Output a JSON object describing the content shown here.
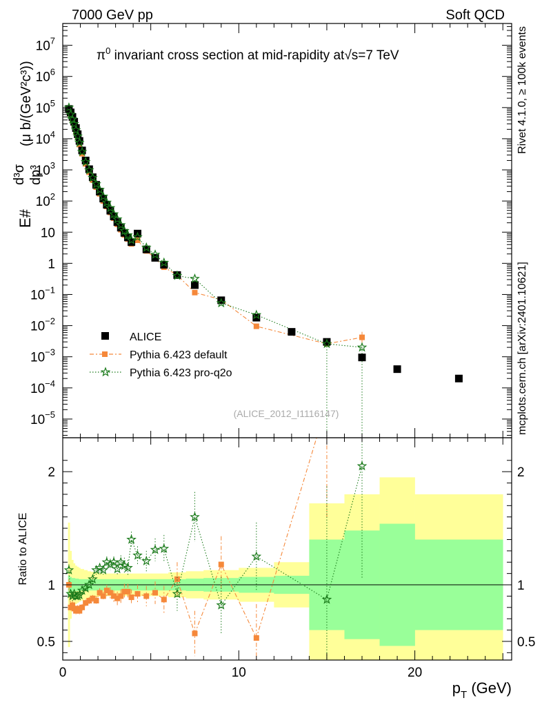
{
  "header": {
    "energy_label": "7000 GeV pp",
    "process_label": "Soft QCD"
  },
  "side": {
    "rivet_label": "Rivet 4.1.0, ≥ 100k events",
    "mcplots_label": "mcplots.cern.ch [arXiv:2401.10621]"
  },
  "chart_data": {
    "type": "scatter",
    "title": "π⁰ invariant cross section at mid-rapidity at √s=7 TeV",
    "title_parts": {
      "prefix": "π",
      "sup": "0",
      "middle": " invariant cross section at mid-rapidity at",
      "root": "√",
      "suffix": "s=7 TeV"
    },
    "ylabel": "E d³σ/dp³ (μ b/(GeV² c³))",
    "ylabel_parts": {
      "a": "E#",
      "num": "d³σ",
      "den": "dp³",
      "unit": "(μ b/(GeV²c³))"
    },
    "xlabel": "p_T (GeV)",
    "xlabel_parts": {
      "main": "p",
      "sub": "T",
      "unit": " (GeV)"
    },
    "ratio_ylabel": "Ratio to ALICE",
    "watermark": "(ALICE_2012_I1116147)",
    "xlim": [
      0,
      25.5
    ],
    "ylim_log_exp": [
      -5.6,
      7.7
    ],
    "ratio_ylim": [
      0.335,
      2.3
    ],
    "x_ticks": [
      0,
      10,
      20
    ],
    "x_tick_labels": [
      "0",
      "10",
      "20"
    ],
    "y_ticks": [
      {
        "exp": 7,
        "label": "10",
        "sup": "7"
      },
      {
        "exp": 6,
        "label": "10",
        "sup": "6"
      },
      {
        "exp": 5,
        "label": "10",
        "sup": "5"
      },
      {
        "exp": 4,
        "label": "10",
        "sup": "4"
      },
      {
        "exp": 3,
        "label": "10",
        "sup": "3"
      },
      {
        "exp": 2,
        "label": "10",
        "sup": "2"
      },
      {
        "exp": 1,
        "label": "10",
        "sup": ""
      },
      {
        "exp": 0,
        "label": "1",
        "sup": ""
      },
      {
        "exp": -1,
        "label": "10",
        "sup": "−1"
      },
      {
        "exp": -2,
        "label": "10",
        "sup": "−2"
      },
      {
        "exp": -3,
        "label": "10",
        "sup": "−3"
      },
      {
        "exp": -4,
        "label": "10",
        "sup": "−4"
      },
      {
        "exp": -5,
        "label": "10",
        "sup": "−5"
      }
    ],
    "ratio_ticks": [
      0.5,
      1,
      2
    ],
    "ratio_tick_labels": [
      "0.5",
      "1",
      "2"
    ],
    "legend": [
      {
        "name": "ALICE"
      },
      {
        "name": "Pythia 6.423 default"
      },
      {
        "name": "Pythia 6.423 pro-q2o"
      }
    ],
    "colors": {
      "data": "#000000",
      "default": "#f5883a",
      "proq2o": "#1a7a1a",
      "band_outer": "#ffff99",
      "band_inner": "#99ff99",
      "watermark": "#aaaaaa",
      "side_text": "#999999"
    },
    "series": [
      {
        "name": "ALICE",
        "x": [
          0.35,
          0.45,
          0.55,
          0.65,
          0.75,
          0.85,
          0.95,
          1.1,
          1.3,
          1.5,
          1.7,
          1.9,
          2.1,
          2.3,
          2.5,
          2.7,
          2.9,
          3.1,
          3.3,
          3.5,
          3.7,
          3.9,
          4.25,
          4.75,
          5.25,
          5.75,
          6.5,
          7.5,
          9.0,
          11.0,
          13.0,
          15.0,
          17.0,
          19.0,
          22.5
        ],
        "y": [
          90000,
          70000,
          50000,
          35000,
          22000,
          14000,
          8500,
          4200,
          2000,
          1050,
          580,
          330,
          200,
          120,
          76,
          49,
          32,
          21,
          14,
          9.5,
          6.8,
          4.8,
          9.0,
          2.8,
          1.5,
          0.9,
          0.42,
          0.2,
          0.065,
          0.018,
          0.0063,
          0.003,
          0.00095,
          0.0004,
          0.0002
        ]
      },
      {
        "name": "Pythia 6.423 default",
        "x": [
          0.35,
          0.45,
          0.55,
          0.65,
          0.75,
          0.85,
          0.95,
          1.1,
          1.3,
          1.5,
          1.7,
          1.9,
          2.1,
          2.3,
          2.5,
          2.7,
          2.9,
          3.1,
          3.3,
          3.5,
          3.7,
          3.9,
          4.25,
          4.75,
          5.25,
          5.75,
          6.5,
          7.5,
          9.0,
          11.0,
          15.0,
          17.0
        ],
        "y": [
          90000,
          55000,
          40000,
          28000,
          17000,
          11000,
          6500,
          3300,
          1560,
          840,
          470,
          280,
          170,
          100,
          67,
          43,
          28,
          18,
          12,
          8.2,
          6.0,
          4.2,
          5.5,
          2.5,
          1.45,
          0.75,
          0.42,
          0.115,
          0.068,
          0.0095,
          0.0026,
          0.0042
        ],
        "ratio": [
          1.0,
          0.8,
          0.82,
          0.79,
          0.77,
          0.79,
          0.77,
          0.8,
          0.84,
          0.86,
          0.88,
          0.86,
          0.93,
          0.9,
          0.95,
          0.93,
          0.9,
          0.88,
          0.9,
          0.94,
          0.94,
          0.89,
          0.92,
          0.9,
          0.93,
          0.87,
          1.05,
          0.57,
          1.18,
          0.53,
          2.6,
          4.6
        ],
        "ratio_err": [
          0.05,
          0.04,
          0.04,
          0.04,
          0.03,
          0.03,
          0.03,
          0.03,
          0.03,
          0.03,
          0.03,
          0.04,
          0.04,
          0.04,
          0.05,
          0.05,
          0.05,
          0.06,
          0.06,
          0.07,
          0.07,
          0.07,
          0.08,
          0.09,
          0.1,
          0.12,
          0.15,
          0.2,
          0.25,
          0.3,
          1.0,
          1.0
        ]
      },
      {
        "name": "Pythia 6.423 pro-q2o",
        "x": [
          0.35,
          0.45,
          0.55,
          0.65,
          0.75,
          0.85,
          0.95,
          1.1,
          1.3,
          1.5,
          1.7,
          1.9,
          2.1,
          2.3,
          2.5,
          2.7,
          2.9,
          3.1,
          3.3,
          3.5,
          3.7,
          3.9,
          4.25,
          4.75,
          5.25,
          5.75,
          6.5,
          7.5,
          9.0,
          11.0,
          15.0,
          17.0
        ],
        "y": [
          100000,
          60000,
          42000,
          30000,
          19000,
          12000,
          7500,
          3800,
          1800,
          980,
          560,
          350,
          230,
          140,
          90,
          60,
          38,
          26,
          17,
          11,
          8.0,
          5.6,
          7.0,
          3.2,
          1.9,
          1.05,
          0.4,
          0.32,
          0.053,
          0.022,
          0.0026,
          0.002
        ],
        "ratio": [
          1.13,
          0.92,
          0.9,
          0.92,
          0.9,
          0.9,
          0.91,
          0.95,
          0.97,
          1.0,
          1.05,
          1.13,
          1.15,
          1.13,
          1.2,
          1.18,
          1.2,
          1.14,
          1.2,
          1.17,
          1.15,
          1.4,
          1.26,
          1.21,
          1.31,
          1.32,
          0.92,
          1.6,
          0.82,
          1.25,
          0.87,
          2.05
        ],
        "ratio_err": [
          0.05,
          0.04,
          0.04,
          0.04,
          0.03,
          0.03,
          0.03,
          0.03,
          0.03,
          0.03,
          0.03,
          0.04,
          0.04,
          0.04,
          0.05,
          0.05,
          0.05,
          0.06,
          0.06,
          0.07,
          0.07,
          0.07,
          0.08,
          0.09,
          0.1,
          0.12,
          0.15,
          0.22,
          0.25,
          0.3,
          1.0,
          1.0
        ]
      }
    ],
    "ratio_bands": {
      "edges": [
        0.3,
        0.4,
        0.5,
        0.6,
        0.7,
        0.8,
        0.9,
        1.0,
        1.2,
        1.4,
        1.6,
        1.8,
        2.0,
        2.2,
        2.4,
        2.6,
        2.8,
        3.0,
        3.2,
        3.4,
        3.6,
        3.8,
        4.0,
        4.5,
        5.0,
        5.5,
        6.0,
        7.0,
        8.0,
        10.0,
        12.0,
        14.0,
        16.0,
        18.0,
        20.0,
        25.0
      ],
      "outer": [
        0.55,
        0.3,
        0.22,
        0.19,
        0.17,
        0.16,
        0.15,
        0.14,
        0.13,
        0.12,
        0.115,
        0.11,
        0.105,
        0.1,
        0.1,
        0.1,
        0.1,
        0.1,
        0.1,
        0.1,
        0.1,
        0.1,
        0.1,
        0.1,
        0.1,
        0.1,
        0.11,
        0.12,
        0.13,
        0.15,
        0.2,
        0.72,
        0.8,
        0.95,
        0.8
      ],
      "inner": [
        0.08,
        0.07,
        0.06,
        0.06,
        0.055,
        0.055,
        0.05,
        0.05,
        0.05,
        0.05,
        0.05,
        0.05,
        0.05,
        0.05,
        0.05,
        0.05,
        0.05,
        0.05,
        0.05,
        0.05,
        0.05,
        0.05,
        0.05,
        0.05,
        0.05,
        0.05,
        0.05,
        0.055,
        0.06,
        0.07,
        0.08,
        0.4,
        0.48,
        0.54,
        0.4
      ]
    }
  }
}
